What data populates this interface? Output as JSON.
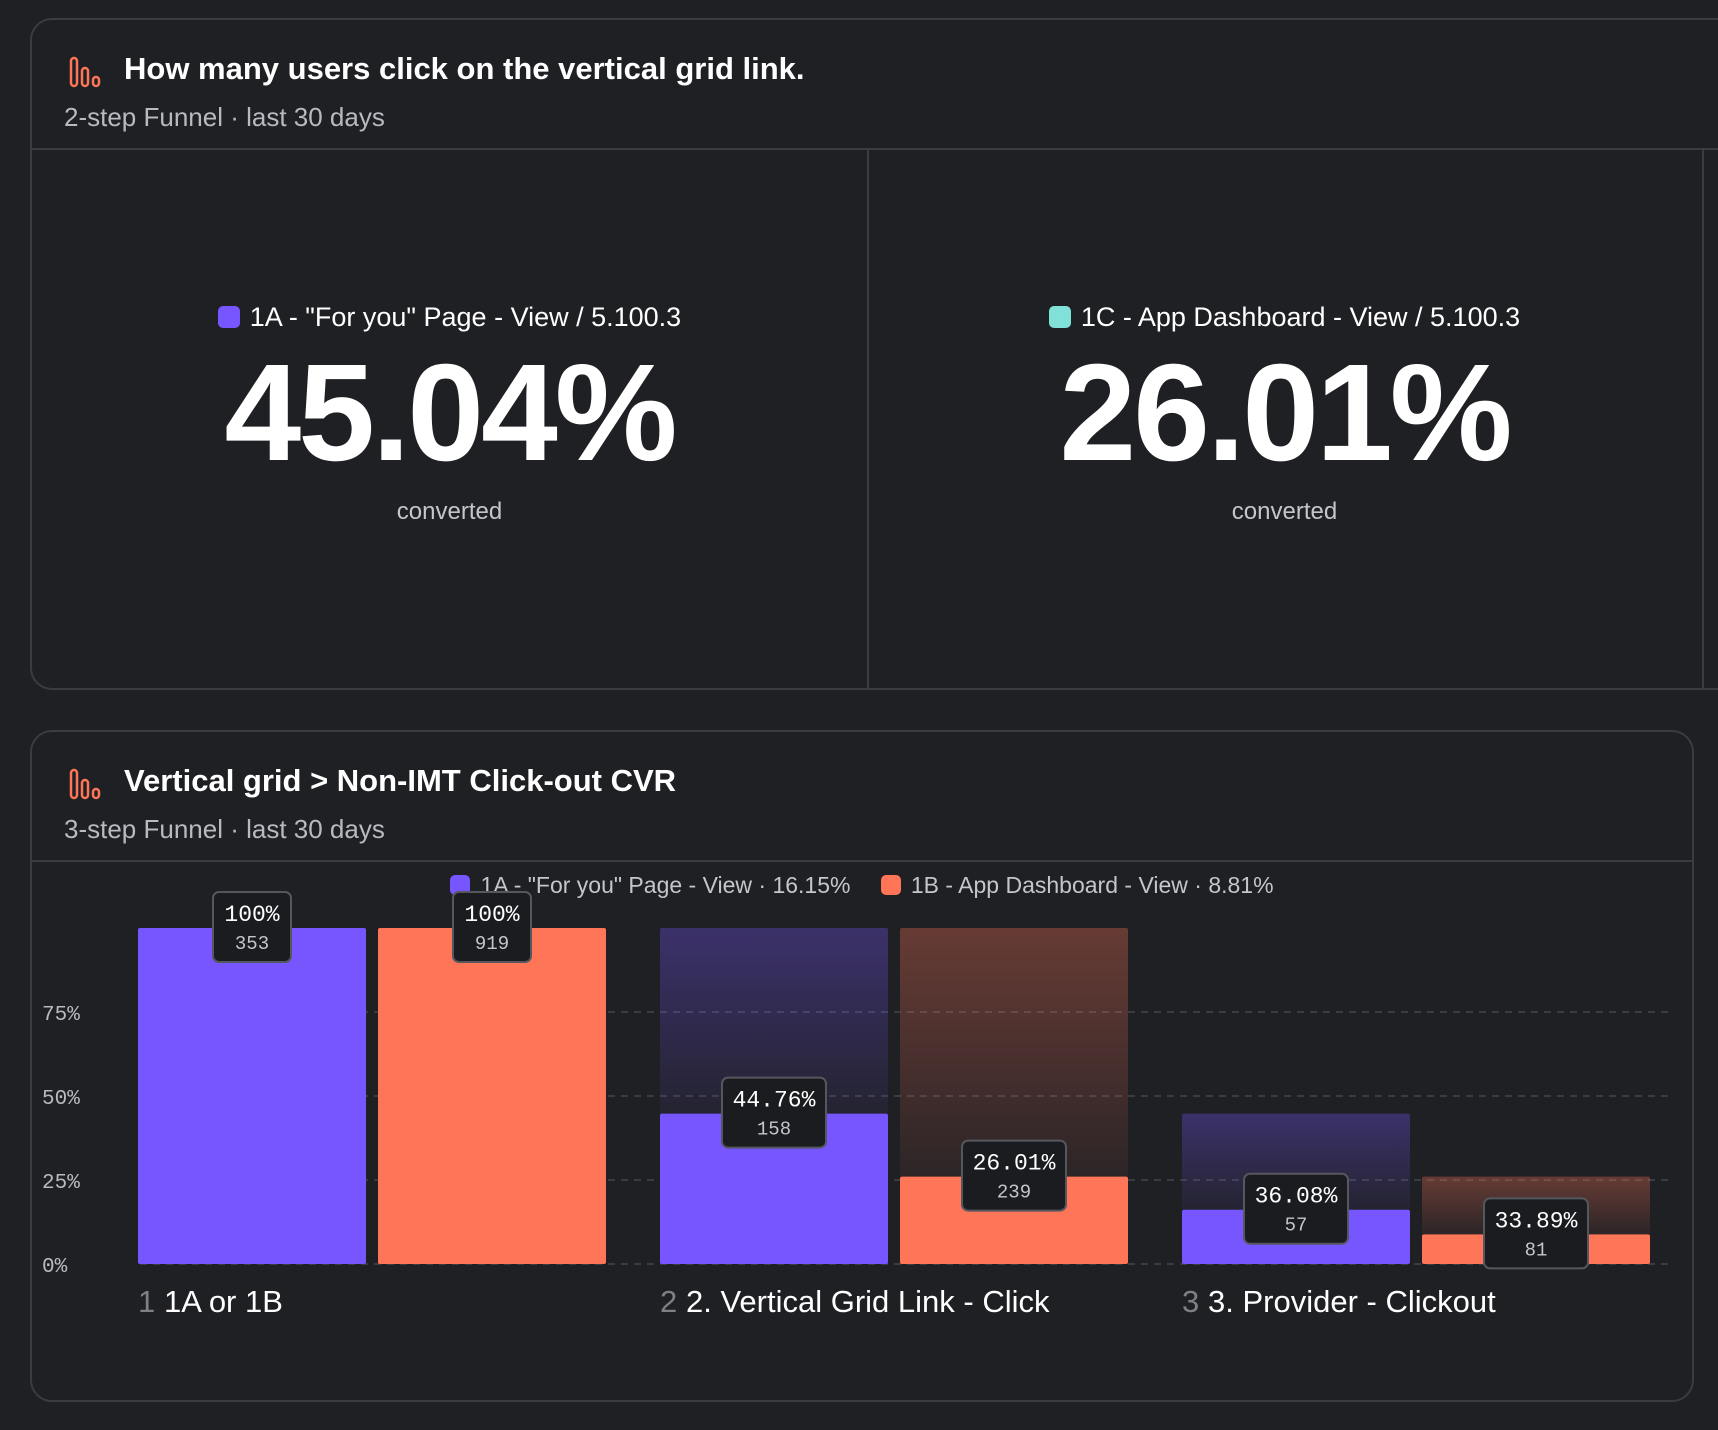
{
  "colors": {
    "purple": "#7856ff",
    "orange": "#ff7557",
    "teal": "#80e1d9",
    "icon": "#ff7557"
  },
  "report1": {
    "icon": "funnel-chart-icon",
    "title": "How many users click on the vertical grid link.",
    "subtitle": "2-step Funnel · last 30 days",
    "metrics": [
      {
        "label": "1A - \"For you\" Page - View / 5.100.3",
        "value": "45.04%",
        "sub": "converted",
        "color": "#7856ff"
      },
      {
        "label": "1C - App Dashboard - View / 5.100.3",
        "value": "26.01%",
        "sub": "converted",
        "color": "#80e1d9"
      }
    ]
  },
  "report2": {
    "icon": "funnel-chart-icon",
    "title": "Vertical grid > Non-IMT Click-out CVR",
    "subtitle": "3-step Funnel · last 30 days",
    "legend": [
      {
        "label": "1A - \"For you\" Page - View · 16.15%",
        "color": "#7856ff"
      },
      {
        "label": "1B - App Dashboard - View · 8.81%",
        "color": "#ff7557"
      }
    ]
  },
  "chart_data": {
    "type": "bar",
    "title": "Vertical grid > Non-IMT Click-out CVR",
    "y_ticks": [
      "0%",
      "25%",
      "50%",
      "75%"
    ],
    "ylim": [
      0,
      100
    ],
    "categories": [
      {
        "num": "1",
        "label": "1A or 1B"
      },
      {
        "num": "2",
        "label": "2. Vertical Grid Link - Click"
      },
      {
        "num": "3",
        "label": "3. Provider - Clickout"
      }
    ],
    "series": [
      {
        "name": "1A - \"For you\" Page - View",
        "color": "#7856ff",
        "values": [
          100,
          44.76,
          16.15
        ],
        "previous": [
          100,
          100,
          44.76
        ],
        "tooltips": [
          {
            "pct": "100%",
            "count": "353"
          },
          {
            "pct": "44.76%",
            "count": "158"
          },
          {
            "pct": "36.08%",
            "count": "57"
          }
        ]
      },
      {
        "name": "1B - App Dashboard - View",
        "color": "#ff7557",
        "values": [
          100,
          26.01,
          8.81
        ],
        "previous": [
          100,
          100,
          26.01
        ],
        "tooltips": [
          {
            "pct": "100%",
            "count": "919"
          },
          {
            "pct": "26.01%",
            "count": "239"
          },
          {
            "pct": "33.89%",
            "count": "81"
          }
        ]
      }
    ]
  }
}
